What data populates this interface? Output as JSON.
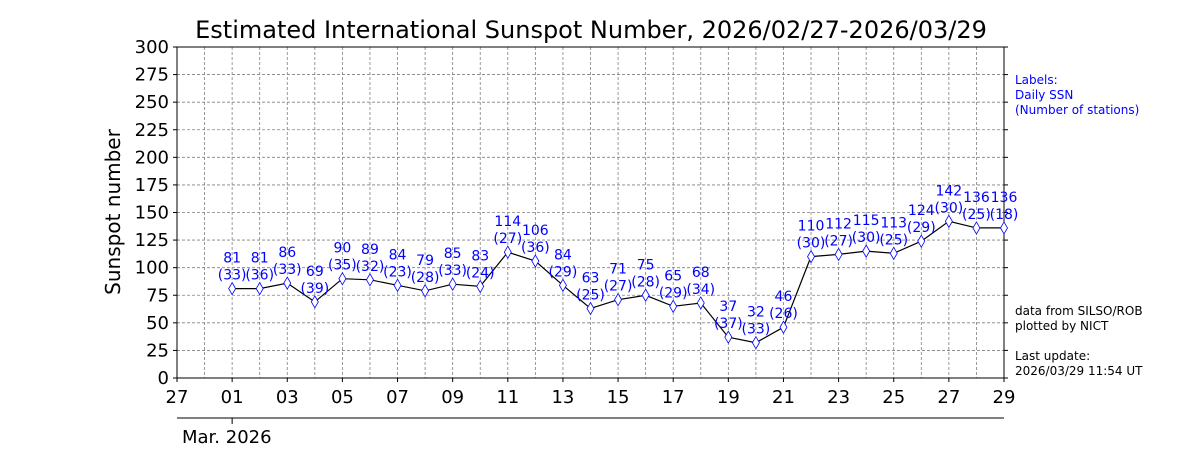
{
  "title": "Estimated International Sunspot Number, 2026/02/27-2026/03/29",
  "ylabel": "Sunspot number",
  "month_label": "Mar. 2026",
  "side_notes": {
    "labels_heading": "Labels:",
    "labels_line1": "Daily SSN",
    "labels_line2": "(Number of stations)",
    "source_line1": "data from SILSO/ROB",
    "source_line2": "plotted by NICT",
    "update_line1": "Last update:",
    "update_line2": "2026/03/29 11:54 UT"
  },
  "colors": {
    "label": "#0000ff",
    "marker": "#0000ff",
    "line": "#000000",
    "grid": "#808080"
  },
  "chart_data": {
    "type": "line",
    "ylim": [
      0,
      300
    ],
    "yticks": [
      0,
      25,
      50,
      75,
      100,
      125,
      150,
      175,
      200,
      225,
      250,
      275,
      300
    ],
    "xlim_days": [
      -1,
      29
    ],
    "xticks": [
      {
        "day": -1,
        "label": "27"
      },
      {
        "day": 1,
        "label": "01"
      },
      {
        "day": 3,
        "label": "03"
      },
      {
        "day": 5,
        "label": "05"
      },
      {
        "day": 7,
        "label": "07"
      },
      {
        "day": 9,
        "label": "09"
      },
      {
        "day": 11,
        "label": "11"
      },
      {
        "day": 13,
        "label": "13"
      },
      {
        "day": 15,
        "label": "15"
      },
      {
        "day": 17,
        "label": "17"
      },
      {
        "day": 19,
        "label": "19"
      },
      {
        "day": 21,
        "label": "21"
      },
      {
        "day": 23,
        "label": "23"
      },
      {
        "day": 25,
        "label": "25"
      },
      {
        "day": 27,
        "label": "27"
      },
      {
        "day": 29,
        "label": "29"
      }
    ],
    "grid": true,
    "series": [
      {
        "points": [
          {
            "day": 1,
            "ssn": 81,
            "stations": 33
          },
          {
            "day": 2,
            "ssn": 81,
            "stations": 36
          },
          {
            "day": 3,
            "ssn": 86,
            "stations": 33
          },
          {
            "day": 4,
            "ssn": 69,
            "stations": 39
          },
          {
            "day": 5,
            "ssn": 90,
            "stations": 35
          },
          {
            "day": 6,
            "ssn": 89,
            "stations": 32
          },
          {
            "day": 7,
            "ssn": 84,
            "stations": 23
          },
          {
            "day": 8,
            "ssn": 79,
            "stations": 28
          },
          {
            "day": 9,
            "ssn": 85,
            "stations": 33
          },
          {
            "day": 10,
            "ssn": 83,
            "stations": 24
          },
          {
            "day": 11,
            "ssn": 114,
            "stations": 27
          },
          {
            "day": 12,
            "ssn": 106,
            "stations": 36
          },
          {
            "day": 13,
            "ssn": 84,
            "stations": 29
          },
          {
            "day": 14,
            "ssn": 63,
            "stations": 25
          },
          {
            "day": 15,
            "ssn": 71,
            "stations": 27
          },
          {
            "day": 16,
            "ssn": 75,
            "stations": 28
          },
          {
            "day": 17,
            "ssn": 65,
            "stations": 29
          },
          {
            "day": 18,
            "ssn": 68,
            "stations": 34
          },
          {
            "day": 19,
            "ssn": 37,
            "stations": 37
          },
          {
            "day": 20,
            "ssn": 32,
            "stations": 33
          },
          {
            "day": 21,
            "ssn": 46,
            "stations": 26
          },
          {
            "day": 22,
            "ssn": 110,
            "stations": 30
          },
          {
            "day": 23,
            "ssn": 112,
            "stations": 27
          },
          {
            "day": 24,
            "ssn": 115,
            "stations": 30
          },
          {
            "day": 25,
            "ssn": 113,
            "stations": 25
          },
          {
            "day": 26,
            "ssn": 124,
            "stations": 29
          },
          {
            "day": 27,
            "ssn": 142,
            "stations": 30
          },
          {
            "day": 28,
            "ssn": 136,
            "stations": 25
          },
          {
            "day": 29,
            "ssn": 136,
            "stations": 18
          }
        ]
      }
    ]
  }
}
